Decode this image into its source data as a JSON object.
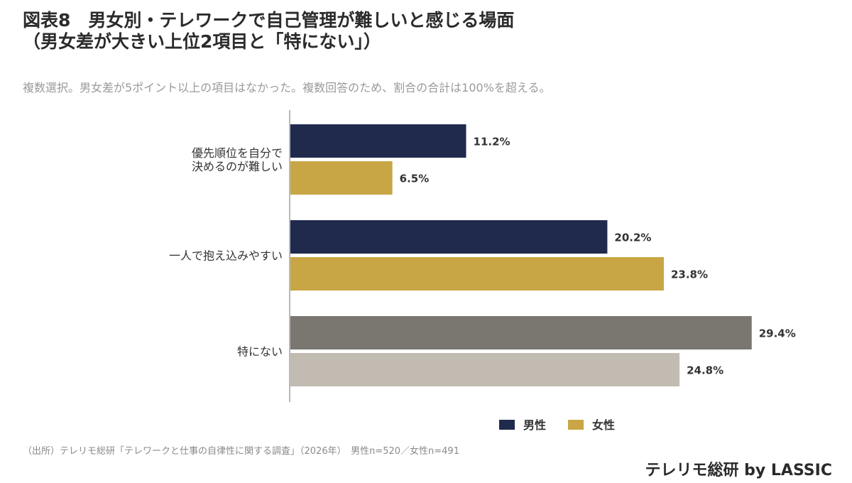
{
  "header": {
    "title_line1": "図表8　男女別・テレワークで自己管理が難しいと感じる場面",
    "title_line2": "（男女差が大きい上位2項目と「特にない」）",
    "subtitle": "複数選択。男女差が5ポイント以上の項目はなかった。複数回答のため、割合の合計は100%を超える。"
  },
  "chart_data": {
    "type": "bar",
    "orientation": "horizontal",
    "categories": [
      [
        "優先順位を自分で",
        "決めるのが難しい"
      ],
      [
        "一人で抱え込みやすい"
      ],
      [
        "特にない"
      ]
    ],
    "series": [
      {
        "name": "男性",
        "values": [
          11.2,
          20.2,
          29.4
        ]
      },
      {
        "name": "女性",
        "values": [
          6.5,
          23.8,
          24.8
        ]
      }
    ],
    "value_labels": [
      [
        "11.2%",
        "6.5%"
      ],
      [
        "20.2%",
        "23.8%"
      ],
      [
        "29.4%",
        "24.8%"
      ]
    ],
    "bar_colors": [
      [
        "#1f2a4d",
        "#c9a645"
      ],
      [
        "#1f2a4d",
        "#c9a645"
      ],
      [
        "#7a7670",
        "#c2bbb2"
      ]
    ],
    "legend": {
      "position": "bottom-right",
      "items": [
        {
          "label": "男性",
          "color": "#1f2a4d"
        },
        {
          "label": "女性",
          "color": "#c9a645"
        }
      ]
    },
    "xlim": [
      0,
      30
    ],
    "grid": false
  },
  "footer": {
    "source": "（出所）テレリモ総研「テレワークと仕事の自律性に関する調査」（2026年）　男性n=520／女性n=491",
    "brand": "テレリモ総研 by LASSIC"
  }
}
